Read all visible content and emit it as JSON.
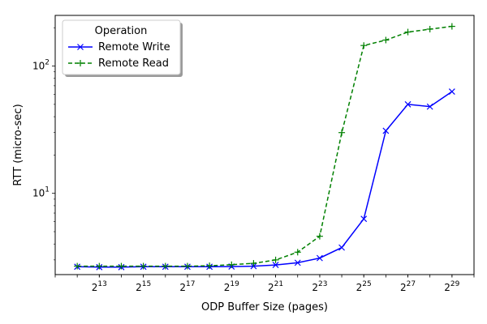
{
  "chart_data": {
    "type": "line",
    "xlabel": "ODP Buffer Size (pages)",
    "ylabel": "RTT (micro-sec)",
    "x_scale": "log2",
    "y_scale": "log10",
    "xlim": [
      2048,
      1073741824
    ],
    "ylim": [
      2.3,
      250
    ],
    "x_ticks": [
      {
        "value": 8192,
        "base": "2",
        "exp": "13"
      },
      {
        "value": 32768,
        "base": "2",
        "exp": "15"
      },
      {
        "value": 131072,
        "base": "2",
        "exp": "17"
      },
      {
        "value": 524288,
        "base": "2",
        "exp": "19"
      },
      {
        "value": 2097152,
        "base": "2",
        "exp": "21"
      },
      {
        "value": 8388608,
        "base": "2",
        "exp": "23"
      },
      {
        "value": 33554432,
        "base": "2",
        "exp": "25"
      },
      {
        "value": 134217728,
        "base": "2",
        "exp": "27"
      },
      {
        "value": 536870912,
        "base": "2",
        "exp": "29"
      }
    ],
    "y_ticks": [
      {
        "value": 10,
        "base": "10",
        "exp": "1"
      },
      {
        "value": 100,
        "base": "10",
        "exp": "2"
      }
    ],
    "grid": false,
    "legend": {
      "title": "Operation",
      "position": "top-left"
    },
    "x": [
      4096,
      8192,
      16384,
      32768,
      65536,
      131072,
      262144,
      524288,
      1048576,
      2097152,
      4194304,
      8388608,
      16777216,
      33554432,
      67108864,
      134217728,
      268435456,
      536870912
    ],
    "series": [
      {
        "name": "Remote Write",
        "color": "#0000ff",
        "marker": "x",
        "linestyle": "solid",
        "values": [
          2.65,
          2.63,
          2.63,
          2.65,
          2.65,
          2.65,
          2.65,
          2.66,
          2.68,
          2.74,
          2.85,
          3.1,
          3.75,
          6.3,
          31,
          50,
          48,
          63
        ]
      },
      {
        "name": "Remote Read",
        "color": "#008000",
        "marker": "+",
        "linestyle": "dashed",
        "values": [
          2.68,
          2.68,
          2.68,
          2.68,
          2.68,
          2.68,
          2.7,
          2.75,
          2.82,
          3.0,
          3.45,
          4.6,
          30,
          145,
          160,
          185,
          195,
          205
        ]
      }
    ]
  }
}
